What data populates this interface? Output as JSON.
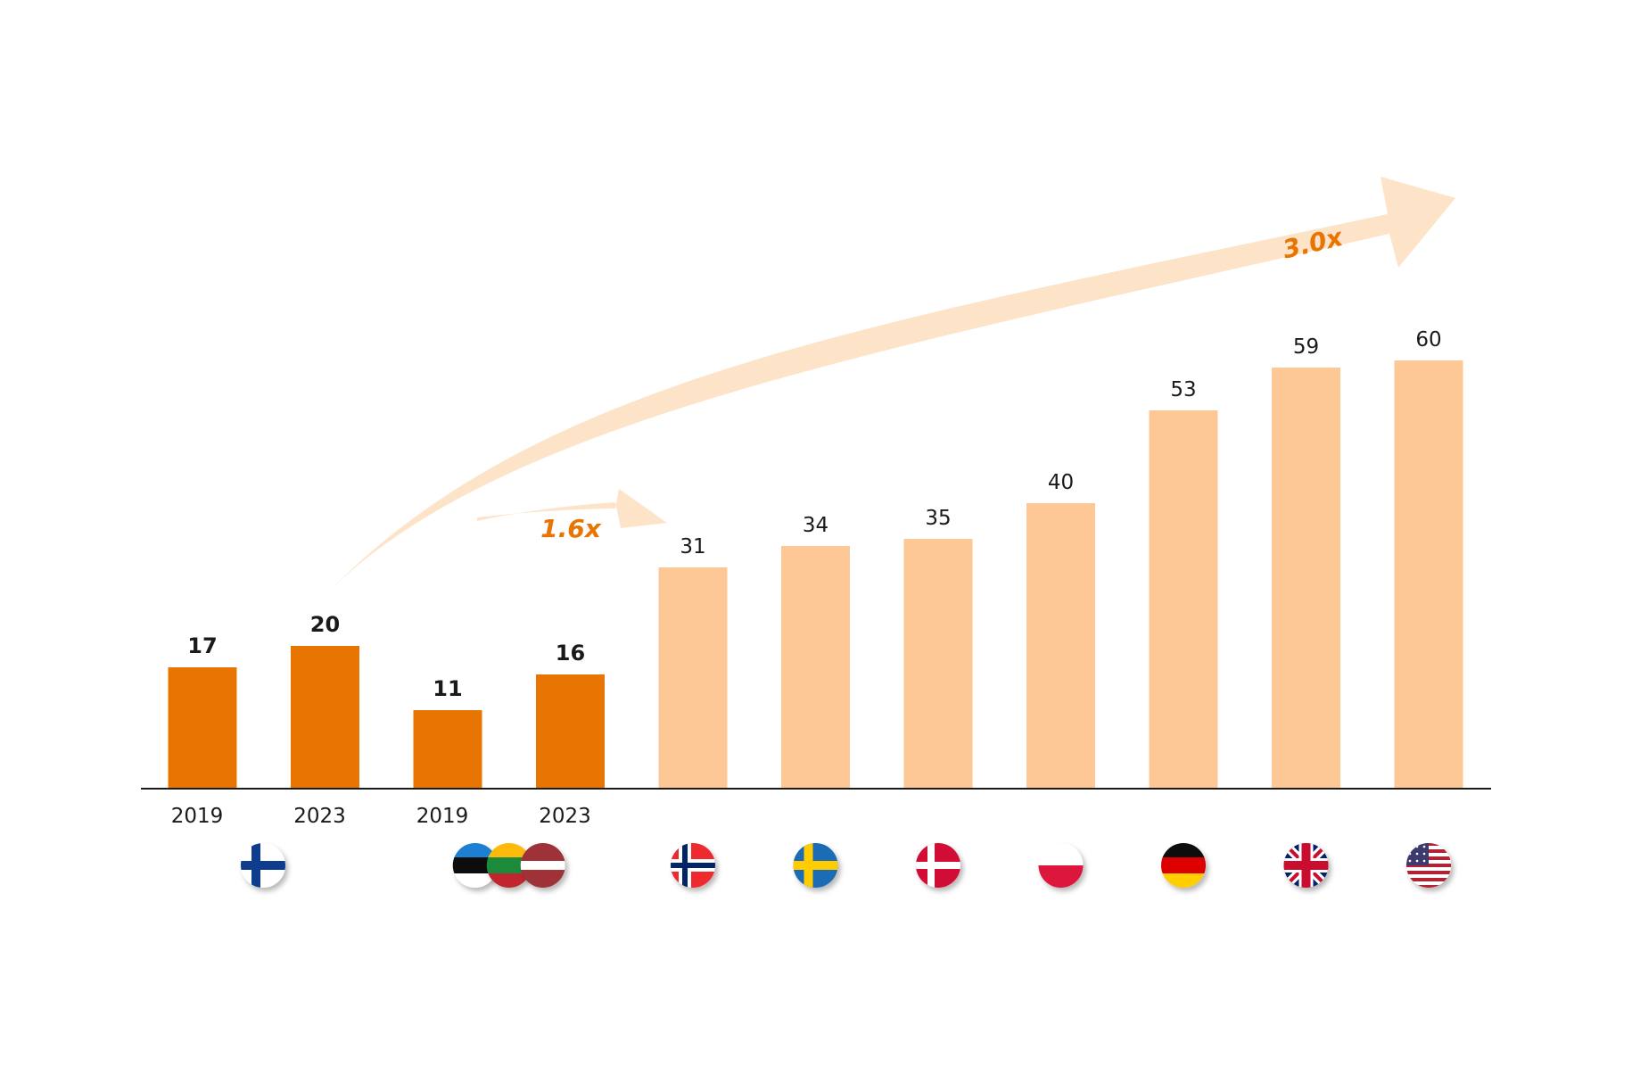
{
  "chart_data": {
    "type": "bar",
    "title": "",
    "xlabel": "",
    "ylabel": "",
    "ylim": [
      0,
      60
    ],
    "grid": false,
    "categories": [
      "Finland 2019",
      "Finland 2023",
      "Baltics 2019",
      "Baltics 2023",
      "Norway",
      "Sweden",
      "Denmark",
      "Poland",
      "Germany",
      "United Kingdom",
      "United States"
    ],
    "values": [
      17,
      20,
      11,
      16,
      31,
      34,
      35,
      40,
      53,
      59,
      60
    ],
    "tick_labels": [
      "2019",
      "2023",
      "2019",
      "2023",
      "",
      "",
      "",
      "",
      "",
      "",
      ""
    ],
    "highlight": [
      true,
      true,
      true,
      true,
      false,
      false,
      false,
      false,
      false,
      false,
      false
    ],
    "flags": [
      "finland-flag-icon",
      "",
      "baltic-flags-icon",
      "",
      "norway-flag-icon",
      "sweden-flag-icon",
      "denmark-flag-icon",
      "poland-flag-icon",
      "germany-flag-icon",
      "uk-flag-icon",
      "usa-flag-icon"
    ],
    "annotations": [
      {
        "text": "1.6x",
        "from": "Finland 2023",
        "to": "Norway"
      },
      {
        "text": "3.0x",
        "from": "Finland 2023",
        "to": "United States"
      }
    ],
    "colors": {
      "highlight": "#e87402",
      "other": "#fdc895",
      "arrow": "#fde3c8",
      "axis": "#1a1a1a"
    }
  }
}
